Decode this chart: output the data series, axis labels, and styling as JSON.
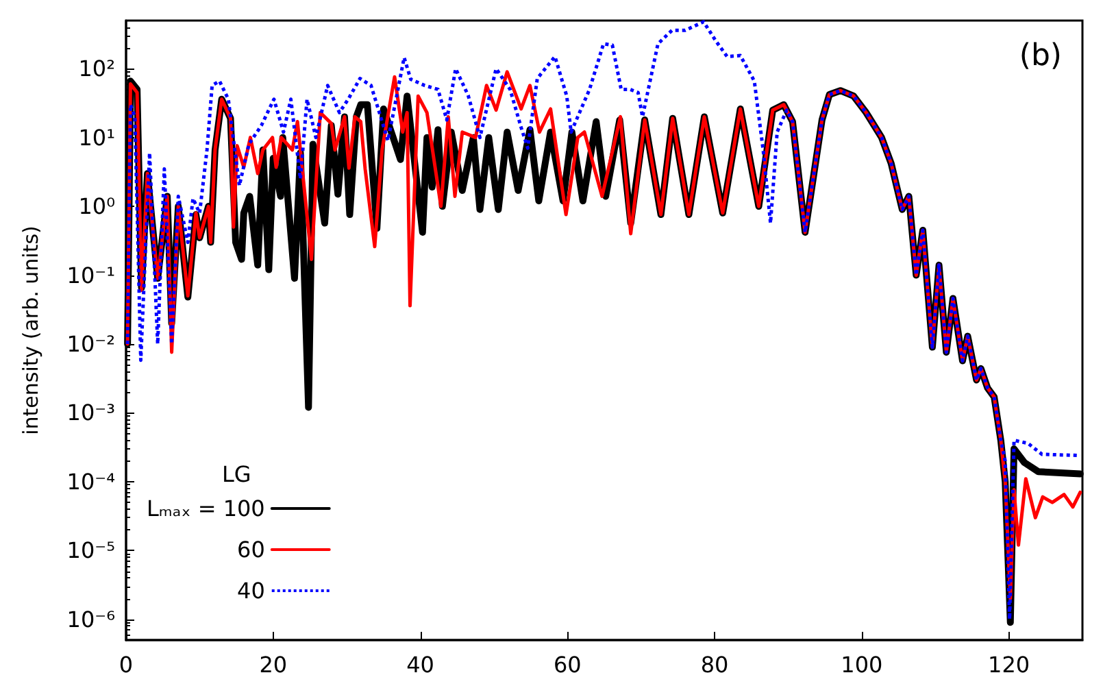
{
  "chart_data": {
    "type": "line",
    "ylabel": "intensity (arb. units)",
    "annotations": [
      "(b)"
    ],
    "legend_title": "LG",
    "legend": "bottom left",
    "log": "y",
    "grid": false,
    "marker": "none",
    "xlim": [
      0,
      130
    ],
    "xticks": [
      0,
      20,
      40,
      60,
      80,
      100,
      120
    ],
    "ylim": [
      5e-07,
      500
    ],
    "yticks": [
      {
        "value": 1e-06,
        "label": "10⁻⁶"
      },
      {
        "value": 1e-05,
        "label": "10⁻⁵"
      },
      {
        "value": 0.0001,
        "label": "10⁻⁴"
      },
      {
        "value": 0.001,
        "label": "10⁻³"
      },
      {
        "value": 0.01,
        "label": "10⁻²"
      },
      {
        "value": 0.1,
        "label": "10⁻¹"
      },
      {
        "value": 1,
        "label": "10⁰"
      },
      {
        "value": 10,
        "label": "10¹"
      },
      {
        "value": 100,
        "label": "10²"
      }
    ],
    "series": [
      {
        "name": "Lₘₐₓ = 100",
        "color": "#000000",
        "line_style": "solid",
        "x": [
          0.2,
          0.6,
          1.5,
          2.1,
          2.9,
          4.3,
          5.6,
          6.2,
          7.1,
          8.4,
          9.5,
          10,
          11.2,
          11.5,
          12.1,
          13,
          14.2,
          14.9,
          15.7,
          16,
          16.8,
          17.9,
          18.6,
          19.4,
          20,
          21,
          21.3,
          22.9,
          23.7,
          24.8,
          25.4,
          27,
          27.9,
          28.8,
          29.7,
          30.4,
          31.3,
          31.9,
          32.8,
          34.1,
          35,
          37.3,
          38.2,
          40.3,
          40.9,
          41.6,
          42.4,
          43,
          44.2,
          45.7,
          47.2,
          48.1,
          49.3,
          50.6,
          51.8,
          53.3,
          54.9,
          56.1,
          57.7,
          59.4,
          60.6,
          62.1,
          63.9,
          65.2,
          67.1,
          68.6,
          70.5,
          72.7,
          74.3,
          76.5,
          78.6,
          81.1,
          83.5,
          86,
          87.9,
          89.4,
          90.6,
          92.3,
          94.6,
          95.6,
          97.1,
          98.9,
          100.6,
          102.7,
          104,
          105.5,
          106.4,
          107.4,
          108.3,
          109.6,
          110.5,
          111.5,
          112.4,
          113.7,
          114.4,
          115.6,
          116.2,
          117.1,
          118,
          118.9,
          119.5,
          120.2,
          120.7,
          122.1,
          124,
          129.7
        ],
        "values": [
          0.01,
          66,
          50,
          0.066,
          3,
          0.09,
          1.4,
          0.02,
          1,
          0.048,
          0.76,
          0.35,
          1,
          0.3,
          6.6,
          36,
          19,
          0.3,
          0.17,
          0.8,
          1.4,
          0.14,
          6.6,
          0.12,
          5,
          1.4,
          10,
          0.09,
          6,
          0.0012,
          8,
          0.57,
          15,
          1.5,
          20,
          0.76,
          20,
          30,
          30,
          0.48,
          26,
          4.8,
          40,
          0.42,
          10,
          1.9,
          13,
          1,
          12,
          1.7,
          10,
          0.9,
          10,
          0.9,
          12,
          1.7,
          13,
          1.2,
          12,
          1.2,
          12,
          1.2,
          17,
          1.4,
          18,
          0.57,
          18,
          0.76,
          19,
          0.76,
          20,
          0.8,
          26,
          1,
          25,
          30,
          17,
          0.42,
          18,
          42,
          48,
          40,
          23,
          10,
          4.2,
          0.9,
          1.4,
          0.1,
          0.45,
          0.009,
          0.14,
          0.0076,
          0.046,
          0.0057,
          0.013,
          0.003,
          0.0044,
          0.0023,
          0.0017,
          0.0004,
          0.0001,
          9e-07,
          0.0003,
          0.00019,
          0.00014,
          0.00013
        ]
      },
      {
        "name": "60",
        "color": "#ff0000",
        "line_style": "solid",
        "x": [
          0.2,
          0.6,
          1.5,
          2.1,
          2.9,
          4.3,
          5.6,
          6.2,
          7.1,
          8.4,
          9.5,
          10,
          11.2,
          11.5,
          12.1,
          13,
          14.2,
          14.6,
          15.1,
          16,
          16.9,
          17.9,
          18.6,
          19.9,
          20.4,
          21.1,
          22.6,
          23.3,
          25.2,
          26.4,
          27.9,
          28.4,
          29.7,
          30.3,
          31.1,
          31.9,
          32.5,
          33.8,
          34.8,
          36.5,
          37.6,
          38.2,
          38.6,
          39.7,
          40.9,
          42.8,
          43.8,
          44.7,
          45.7,
          47.5,
          49,
          50.3,
          51.8,
          53.7,
          54.9,
          56.2,
          57.7,
          59.8,
          61.4,
          62.3,
          64.7,
          67.2,
          68.6,
          70.5,
          72.7,
          74.3,
          76.5,
          78.6,
          81.1,
          83.5,
          86,
          87.9,
          89.4,
          90.6,
          92.3,
          94.6,
          95.6,
          97.1,
          98.9,
          100.6,
          102.7,
          104,
          105.5,
          106.4,
          107.4,
          108.3,
          109.6,
          110.5,
          111.5,
          112.4,
          113.7,
          114.4,
          115.6,
          116.2,
          117.1,
          118,
          118.9,
          119.5,
          120.2,
          120.7,
          121.3,
          122.3,
          123.6,
          124.6,
          125.9,
          127.5,
          128.7,
          129.7
        ],
        "values": [
          0.01,
          60,
          45,
          0.06,
          3,
          0.09,
          1.4,
          0.0076,
          1,
          0.05,
          0.8,
          0.35,
          1,
          0.3,
          6.6,
          36,
          19,
          0.5,
          7.6,
          3.7,
          10,
          3,
          6.6,
          10,
          3.7,
          10,
          6.6,
          17,
          0.17,
          23,
          16,
          6.6,
          20,
          3.6,
          20,
          17,
          3.5,
          0.26,
          6.6,
          76,
          12,
          23,
          0.036,
          40,
          23,
          1,
          20,
          1.4,
          12,
          10,
          57,
          25,
          90,
          26,
          57,
          12,
          26,
          0.76,
          10,
          12,
          1.4,
          20,
          0.4,
          18,
          0.76,
          19,
          0.76,
          20,
          0.8,
          26,
          1,
          25,
          30,
          17,
          0.42,
          18,
          42,
          48,
          40,
          23,
          10,
          4.2,
          0.9,
          1.4,
          0.1,
          0.45,
          0.009,
          0.14,
          0.0076,
          0.046,
          0.0057,
          0.013,
          0.003,
          0.0044,
          0.0023,
          0.0017,
          0.0004,
          0.0001,
          2e-06,
          7.6e-05,
          1.2e-05,
          0.00011,
          3e-05,
          6e-05,
          5e-05,
          6.5e-05,
          4.3e-05,
          7e-05
        ]
      },
      {
        "name": "40",
        "color": "#0000ff",
        "line_style": "dotted",
        "x": [
          0.2,
          0.6,
          1.2,
          2,
          3.2,
          4.3,
          5.2,
          6.2,
          7.1,
          8.4,
          9.1,
          10,
          11,
          11.7,
          12.7,
          13.9,
          15.4,
          16.7,
          18.4,
          20.1,
          21.4,
          22.4,
          23.7,
          24.6,
          25.8,
          27.4,
          29,
          30.2,
          31.8,
          33.3,
          35.6,
          37.8,
          38.7,
          40.6,
          42.4,
          43.6,
          44.8,
          46.5,
          48.1,
          50.3,
          52.2,
          53.7,
          54.6,
          55.9,
          58.3,
          59.9,
          60.5,
          63,
          64.9,
          66.1,
          67.3,
          68.5,
          69.6,
          70.2,
          72.3,
          74.2,
          76,
          78.5,
          80.2,
          81.7,
          83.5,
          85.4,
          86.6,
          87.6,
          88.5,
          89.8,
          90.6,
          92.3,
          94.6,
          95.6,
          97.1,
          98.9,
          100.6,
          102.7,
          104,
          105.5,
          106.4,
          107.4,
          108.3,
          109.6,
          110.5,
          111.5,
          112.4,
          113.7,
          114.4,
          115.6,
          116.2,
          117.1,
          118,
          118.9,
          119.5,
          120.1,
          120.7,
          122.6,
          124.5,
          129.7
        ],
        "values": [
          0.01,
          30,
          20,
          0.0058,
          6,
          0.01,
          3.5,
          0.01,
          1.4,
          0.3,
          1.3,
          0.8,
          6.6,
          57,
          66,
          36,
          2,
          8,
          15,
          36,
          12,
          36,
          2.5,
          36,
          10,
          57,
          23,
          36,
          72,
          57,
          9,
          145,
          70,
          57,
          50,
          18,
          100,
          41,
          10,
          100,
          50,
          14,
          7,
          72,
          150,
          40,
          12,
          50,
          230,
          220,
          50,
          50,
          45,
          20,
          230,
          360,
          360,
          480,
          250,
          150,
          155,
          66,
          6.6,
          0.57,
          12,
          25,
          17,
          0.42,
          18,
          42,
          48,
          40,
          23,
          10,
          4.2,
          0.9,
          1.4,
          0.1,
          0.45,
          0.009,
          0.14,
          0.0076,
          0.046,
          0.0057,
          0.013,
          0.003,
          0.0044,
          0.0023,
          0.0017,
          0.0004,
          0.0002,
          1e-06,
          0.0004,
          0.00036,
          0.00025,
          0.00024
        ]
      }
    ]
  }
}
